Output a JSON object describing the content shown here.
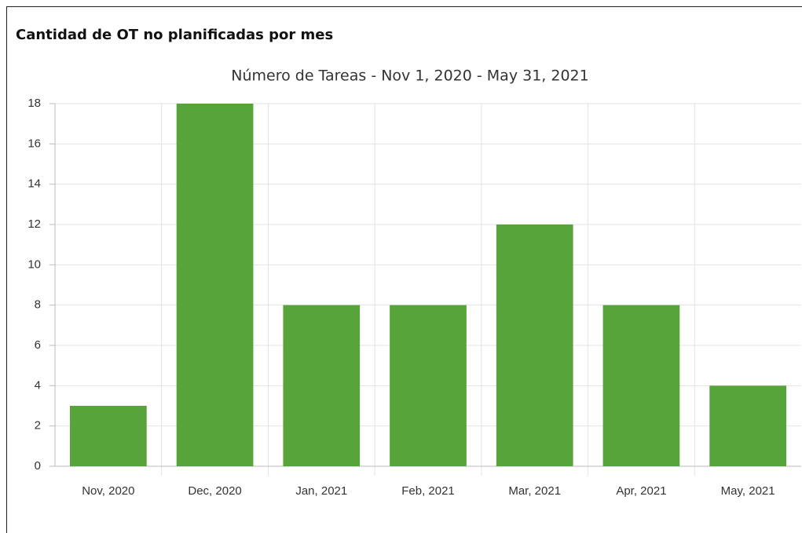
{
  "panel": {
    "title": "Cantidad de OT no planificadas por mes"
  },
  "chart_data": {
    "type": "bar",
    "title": "Número de Tareas - Nov 1, 2020 - May 31, 2021",
    "categories": [
      "Nov, 2020",
      "Dec, 2020",
      "Jan, 2021",
      "Feb, 2021",
      "Mar, 2021",
      "Apr, 2021",
      "May, 2021"
    ],
    "values": [
      3,
      18,
      8,
      8,
      12,
      8,
      4
    ],
    "color": "#57a43a",
    "ylim": [
      0,
      18
    ],
    "yticks": [
      0,
      2,
      4,
      6,
      8,
      10,
      12,
      14,
      16,
      18
    ],
    "grid": true
  }
}
